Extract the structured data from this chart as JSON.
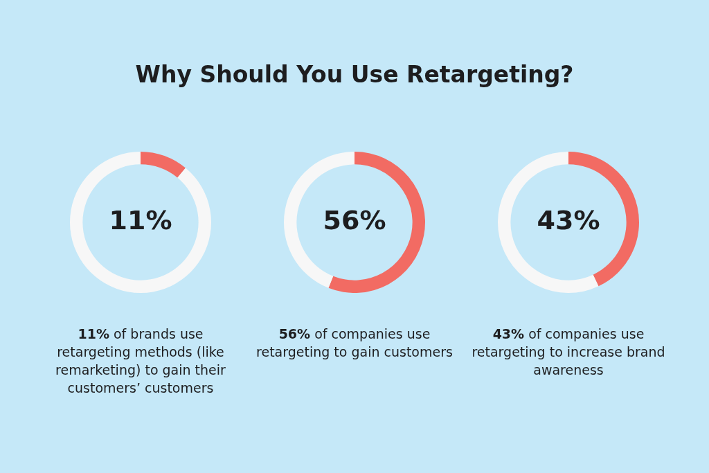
{
  "chart_data": [
    {
      "type": "donut",
      "title": "Why Should You Use Retargeting?",
      "categories": [
        null,
        null
      ],
      "values": [
        11,
        89
      ],
      "colors": [
        "#f26b63",
        "#f7f7f7"
      ],
      "value_labels": [
        "11%",
        null
      ],
      "legend": false,
      "annotations": [
        "11% of brands use retargeting methods (like remarketing) to gain their customers’ customers"
      ]
    },
    {
      "type": "donut",
      "categories": [
        null,
        null
      ],
      "values": [
        56,
        44
      ],
      "colors": [
        "#f26b63",
        "#f7f7f7"
      ],
      "value_labels": [
        "56%",
        null
      ],
      "legend": false,
      "annotations": [
        "56% of companies use retargeting to gain customers"
      ]
    },
    {
      "type": "donut",
      "categories": [
        null,
        null
      ],
      "values": [
        43,
        57
      ],
      "colors": [
        "#f26b63",
        "#f7f7f7"
      ],
      "value_labels": [
        "43%",
        null
      ],
      "legend": false,
      "annotations": [
        "43% of companies use retargeting to increase brand awareness"
      ]
    }
  ]
}
